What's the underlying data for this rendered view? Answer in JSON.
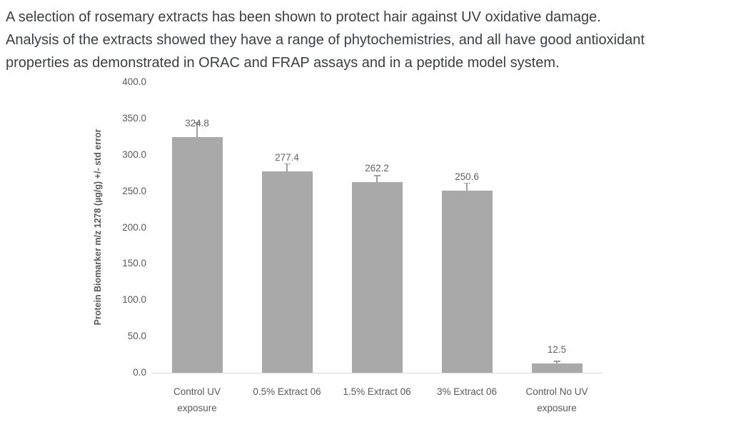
{
  "page": {
    "intro_lines": [
      "A selection of rosemary extracts has been shown to protect hair against UV oxidative damage.",
      "Analysis of the extracts showed they have a range of phytochemistries, and all have good antioxidant",
      "properties as demonstrated in ORAC and FRAP assays and in a peptide model system."
    ]
  },
  "chart_data": {
    "type": "bar",
    "title": "",
    "xlabel": "",
    "ylabel": "Protein Biomarker m/z 1278 (µg/g) +/- std error",
    "categories": [
      "Control UV exposure",
      "0.5% Extract 06",
      "1.5% Extract 06",
      "3% Extract 06",
      "Control No UV exposure"
    ],
    "values": [
      324.8,
      277.4,
      262.2,
      250.6,
      12.5
    ],
    "data_labels": [
      "324.8",
      "277.4",
      "262.2",
      "250.6",
      "12.5"
    ],
    "std_errors_approx": [
      20,
      11,
      10,
      11,
      4
    ],
    "ylim": [
      0,
      400
    ],
    "y_tick_step": 50,
    "y_tick_decimals": 1,
    "grid": false,
    "legend": "none",
    "bar_color": "#a9a9a9",
    "error_bar_color": "#a0a0a0",
    "axis_line_color": "#d9d9d9",
    "label_color": "#595959"
  }
}
